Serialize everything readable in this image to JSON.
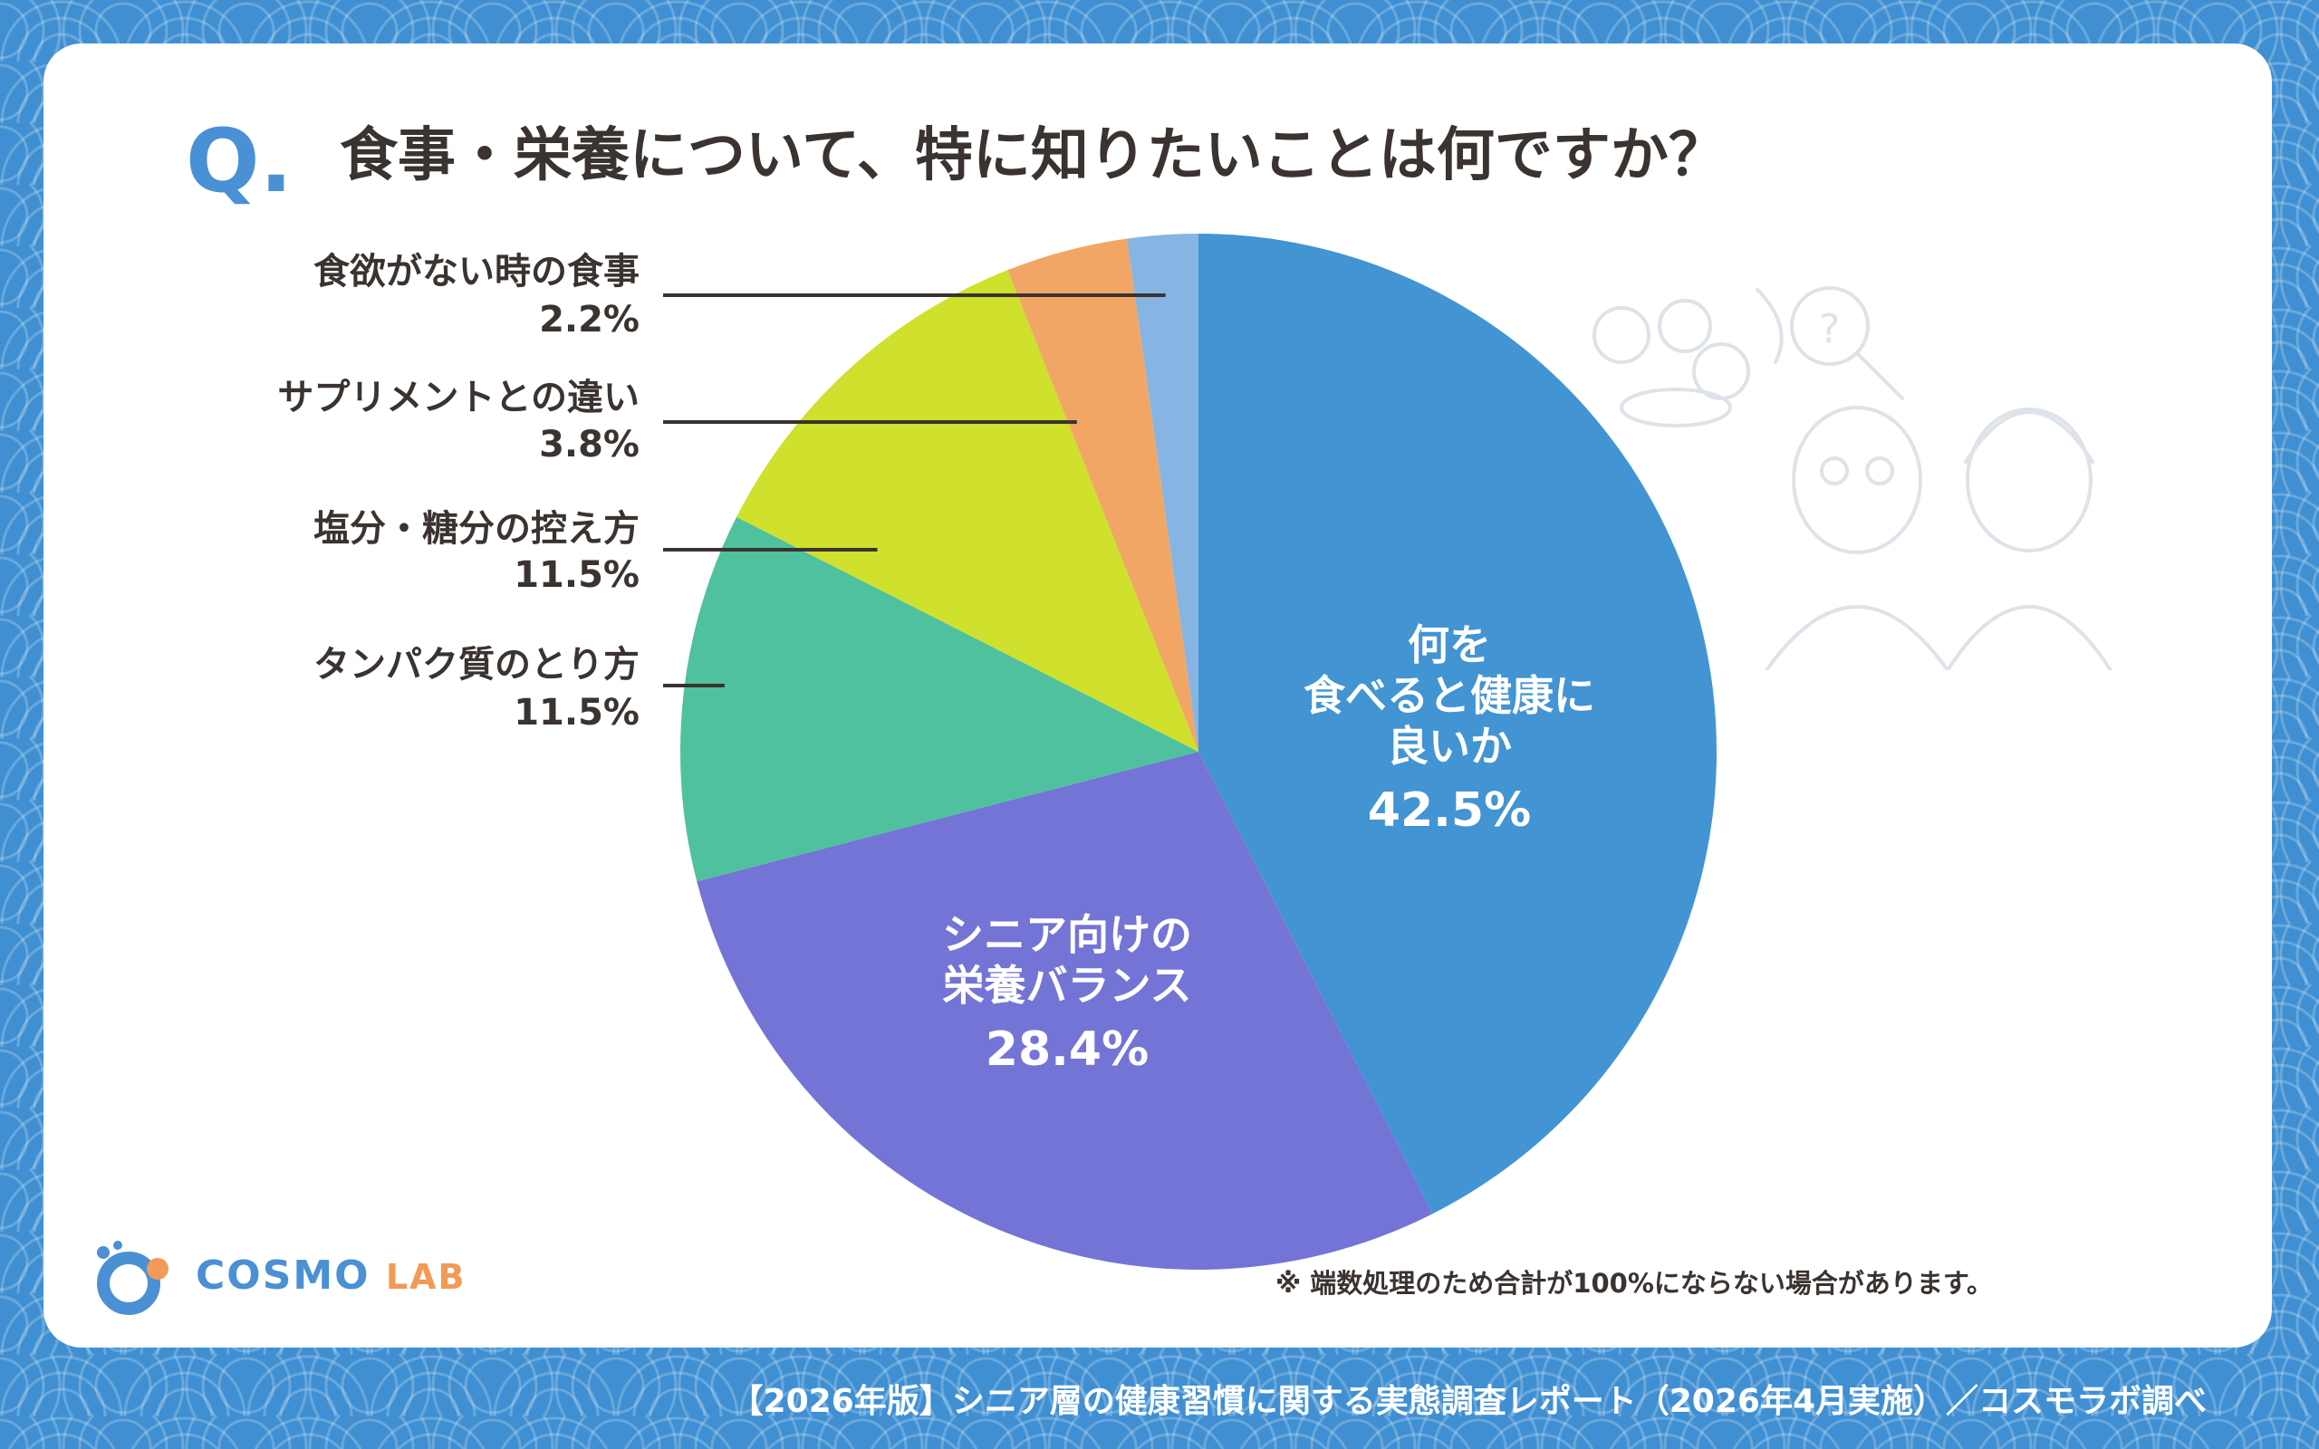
{
  "header": {
    "q_mark": "Q.",
    "question": "食事・栄養について、特に知りたいことは何ですか？"
  },
  "chart_data": {
    "type": "pie",
    "title": "食事・栄養について、特に知りたいことは何ですか？",
    "start_angle_deg": 0,
    "direction": "clockwise",
    "slices": [
      {
        "label": "何を食べると健康に良いか",
        "label_lines": [
          "何を",
          "食べると健康に",
          "良いか"
        ],
        "value_text": "42.5%",
        "value": 42.5,
        "color": "#4294d3",
        "label_position": "inside"
      },
      {
        "label": "シニア向けの栄養バランス",
        "label_lines": [
          "シニア向けの",
          "栄養バランス"
        ],
        "value_text": "28.4%",
        "value": 28.4,
        "color": "#7474d6",
        "label_position": "inside"
      },
      {
        "label": "タンパク質のとり方",
        "label_lines": [
          "タンパク質のとり方"
        ],
        "value_text": "11.5%",
        "value": 11.5,
        "color": "#4fc19e",
        "label_position": "outside-left"
      },
      {
        "label": "塩分・糖分の控え方",
        "label_lines": [
          "塩分・糖分の控え方"
        ],
        "value_text": "11.5%",
        "value": 11.5,
        "color": "#cfe02d",
        "label_position": "outside-left"
      },
      {
        "label": "サプリメントとの違い",
        "label_lines": [
          "サプリメントとの違い"
        ],
        "value_text": "3.8%",
        "value": 3.8,
        "color": "#f2a665",
        "label_position": "outside-left"
      },
      {
        "label": "食欲がない時の食事",
        "label_lines": [
          "食欲がない時の食事"
        ],
        "value_text": "2.2%",
        "value": 2.2,
        "color": "#86b5e3",
        "label_position": "outside-left"
      }
    ]
  },
  "note": "※ 端数処理のため合計が100%にならない場合があります。",
  "logo": {
    "name": "COSMO",
    "suffix": "LAB",
    "colors": [
      "#4a90d4",
      "#f29a56"
    ]
  },
  "footer": "【2026年版】シニア層の健康習慣に関する実態調査レポート（2026年4月実施）／コスモラボ調べ",
  "colors": {
    "background": "#3f8fd2",
    "card": "#ffffff",
    "text": "#3a3330",
    "accent": "#4a90d4"
  },
  "illustration": {
    "icons": [
      "vegetables-icon",
      "magnifier-icon",
      "elderly-man-icon",
      "elderly-woman-icon"
    ]
  }
}
